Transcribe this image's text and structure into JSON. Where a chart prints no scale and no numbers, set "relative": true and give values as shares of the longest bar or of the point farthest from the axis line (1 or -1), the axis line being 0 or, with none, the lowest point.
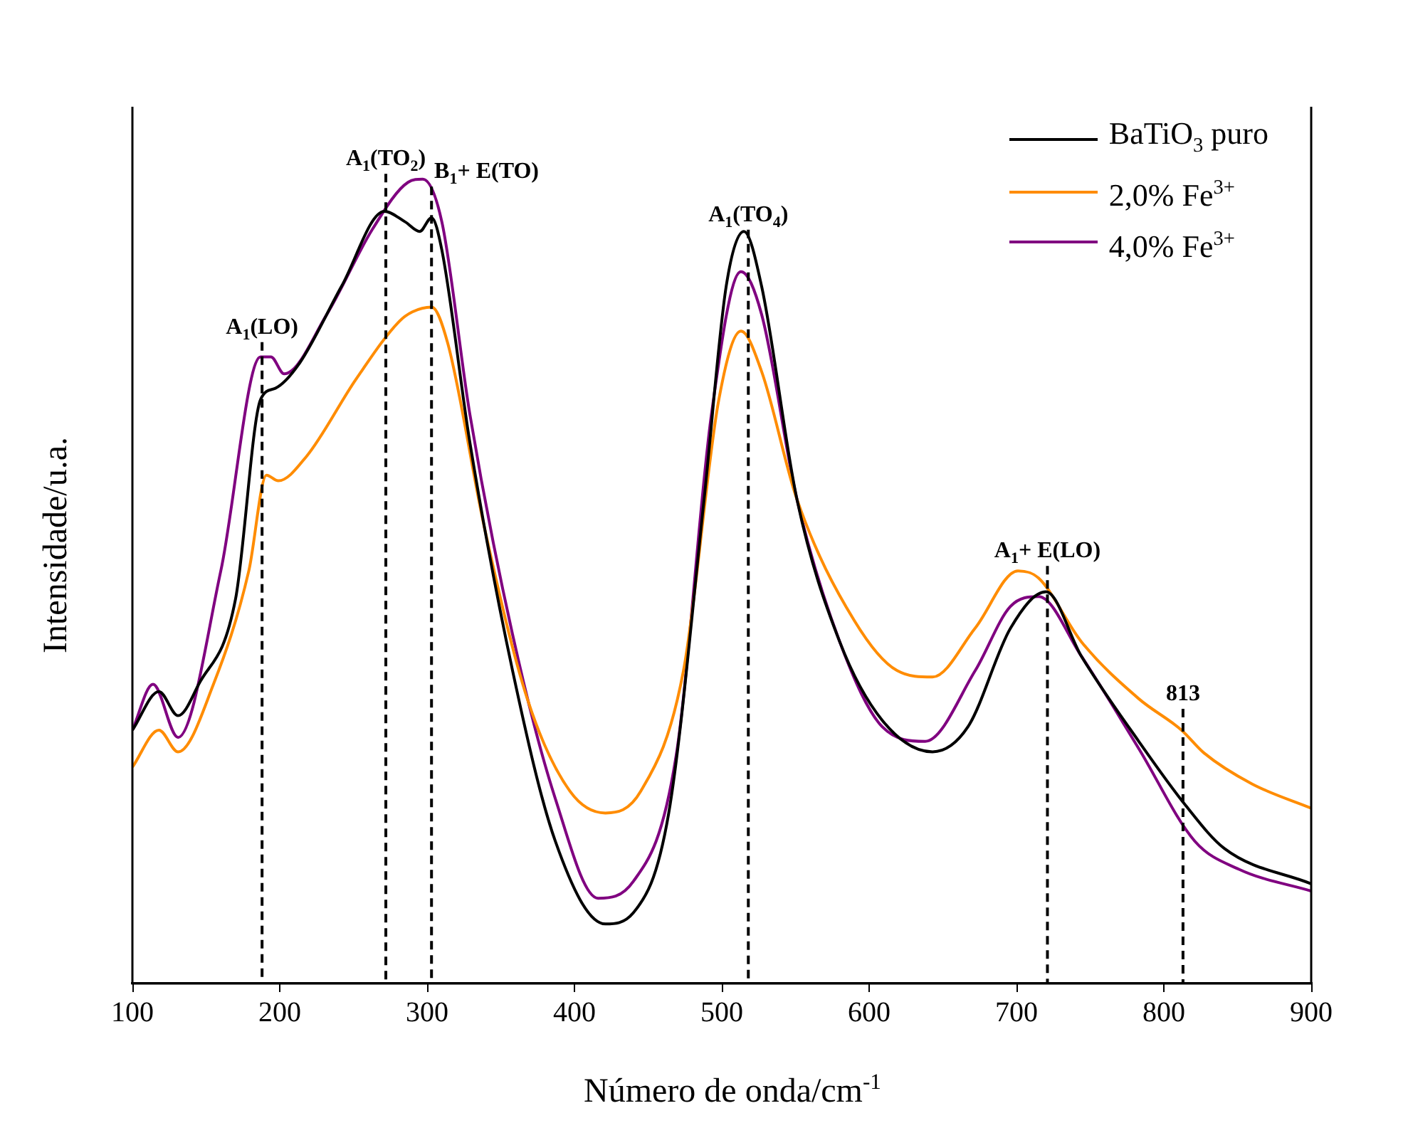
{
  "chart_data": {
    "type": "line",
    "relative": true,
    "xlabel": "Número de onda/cm$^{-1}$",
    "ylabel": "Intensidade/u.a.",
    "xlim": [
      100,
      900
    ],
    "xticks": [
      100,
      200,
      300,
      400,
      500,
      600,
      700,
      800,
      900
    ],
    "legend": "top right",
    "tick_labels": "x",
    "marker": "none",
    "line_style": "solid",
    "series": [
      {
        "name": "BaTiO$_{3}$ puro",
        "color": "#000000",
        "x": [
          100,
          118,
          131,
          145,
          170,
          187,
          197,
          213,
          242,
          271,
          285,
          295,
          303,
          310,
          329,
          358,
          387,
          421,
          440,
          464,
          488,
          503,
          515,
          527,
          551,
          580,
          609,
          643,
          667,
          696,
          720,
          744,
          783,
          815,
          841,
          900
        ],
        "values": [
          0.315,
          0.363,
          0.333,
          0.372,
          0.478,
          0.726,
          0.74,
          0.77,
          0.867,
          0.96,
          0.947,
          0.935,
          0.952,
          0.912,
          0.673,
          0.389,
          0.177,
          0.074,
          0.088,
          0.212,
          0.602,
          0.867,
          0.935,
          0.867,
          0.602,
          0.425,
          0.327,
          0.288,
          0.319,
          0.442,
          0.487,
          0.407,
          0.301,
          0.221,
          0.168,
          0.124
        ]
      },
      {
        "name": "2,0% Fe$^{3+}$",
        "color": "#ff8c00",
        "x": [
          100,
          118,
          131,
          155,
          179,
          191,
          199,
          218,
          252,
          281,
          290,
          303,
          314,
          339,
          368,
          397,
          421,
          445,
          474,
          498,
          513,
          527,
          551,
          590,
          619,
          643,
          672,
          701,
          715,
          744,
          783,
          812,
          827,
          860,
          900
        ],
        "values": [
          0.269,
          0.315,
          0.288,
          0.372,
          0.513,
          0.632,
          0.625,
          0.655,
          0.752,
          0.823,
          0.835,
          0.841,
          0.796,
          0.566,
          0.354,
          0.239,
          0.212,
          0.239,
          0.389,
          0.726,
          0.811,
          0.761,
          0.602,
          0.451,
          0.389,
          0.381,
          0.442,
          0.513,
          0.504,
          0.425,
          0.354,
          0.315,
          0.287,
          0.248,
          0.218
        ]
      },
      {
        "name": "4,0% Fe$^{3+}$",
        "color": "#800080",
        "x": [
          100,
          114,
          131,
          160,
          187,
          194,
          203,
          232,
          263,
          287,
          297,
          310,
          329,
          358,
          387,
          416,
          440,
          469,
          493,
          513,
          527,
          551,
          580,
          609,
          638,
          672,
          696,
          715,
          744,
          783,
          821,
          851,
          900
        ],
        "values": [
          0.315,
          0.372,
          0.306,
          0.513,
          0.779,
          0.779,
          0.758,
          0.832,
          0.938,
          0.996,
          1.0,
          0.947,
          0.708,
          0.434,
          0.23,
          0.106,
          0.127,
          0.283,
          0.708,
          0.885,
          0.832,
          0.602,
          0.425,
          0.319,
          0.301,
          0.389,
          0.469,
          0.481,
          0.407,
          0.292,
          0.177,
          0.142,
          0.115
        ]
      }
    ],
    "ref_lines": [
      {
        "axis": "x",
        "value": 188,
        "label": "A$_{1}$(LO)",
        "color": "#000000",
        "line_style": "dashed"
      },
      {
        "axis": "x",
        "value": 272,
        "label": "A$_{1}$(TO$_{2}$)",
        "color": "#000000",
        "line_style": "dashed"
      },
      {
        "axis": "x",
        "value": 303,
        "label": "B$_{1}$+ E(TO)",
        "color": "#000000",
        "line_style": "dashed"
      },
      {
        "axis": "x",
        "value": 518,
        "label": "A$_{1}$(TO$_{4}$)",
        "color": "#000000",
        "line_style": "dashed"
      },
      {
        "axis": "x",
        "value": 721,
        "label": "A$_{1}$+ E(LO)",
        "color": "#000000",
        "line_style": "dashed"
      },
      {
        "axis": "x",
        "value": 813,
        "label": "813",
        "color": "#000000",
        "line_style": "dashed"
      }
    ]
  }
}
